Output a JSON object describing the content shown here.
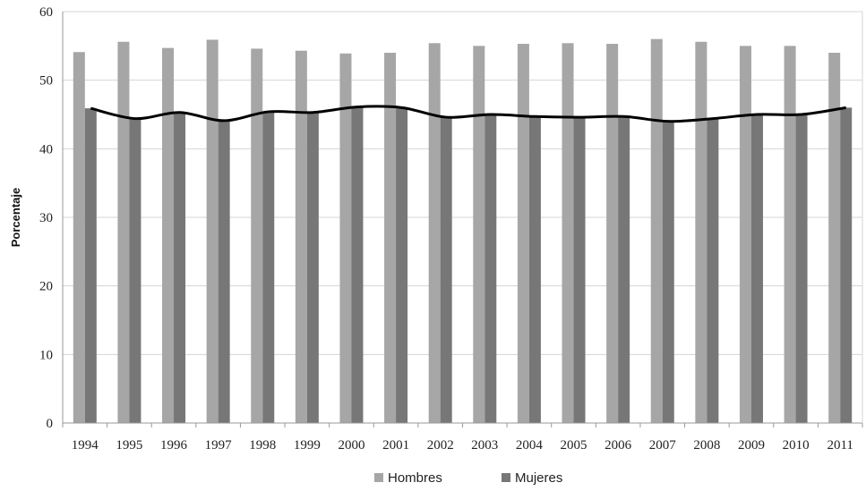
{
  "chart_data": {
    "type": "bar",
    "ylabel": "Porcentaje",
    "ylim": [
      0,
      60
    ],
    "y_ticks": [
      0,
      10,
      20,
      30,
      40,
      50,
      60
    ],
    "grid": true,
    "legend_position": "bottom",
    "categories": [
      "1994",
      "1995",
      "1996",
      "1997",
      "1998",
      "1999",
      "2000",
      "2001",
      "2002",
      "2003",
      "2004",
      "2005",
      "2006",
      "2007",
      "2008",
      "2009",
      "2010",
      "2011"
    ],
    "series": [
      {
        "name": "Hombres",
        "color": "#a6a6a6",
        "values": [
          54.1,
          55.6,
          54.7,
          55.9,
          54.6,
          54.3,
          53.9,
          54.0,
          55.4,
          55.0,
          55.3,
          55.4,
          55.3,
          56.0,
          55.6,
          55.0,
          55.0,
          54.0
        ]
      },
      {
        "name": "Mujeres",
        "color": "#777777",
        "values": [
          45.9,
          44.4,
          45.3,
          44.1,
          45.4,
          45.3,
          46.1,
          46.0,
          44.6,
          45.0,
          44.7,
          44.6,
          44.7,
          44.0,
          44.4,
          45.0,
          45.0,
          46.0
        ]
      }
    ],
    "trend_line": {
      "color": "#000000",
      "values": [
        45.9,
        44.4,
        45.3,
        44.1,
        45.4,
        45.3,
        46.1,
        46.0,
        44.6,
        45.0,
        44.7,
        44.6,
        44.7,
        44.0,
        44.4,
        45.0,
        45.0,
        46.0
      ]
    }
  }
}
